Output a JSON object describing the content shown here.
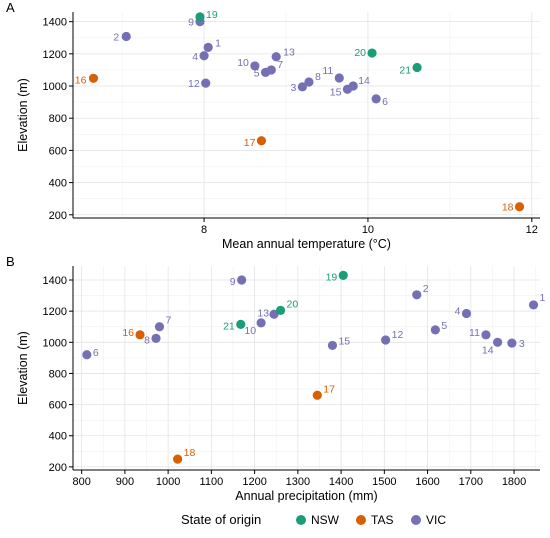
{
  "panels": [
    {
      "label": "A"
    },
    {
      "label": "B"
    }
  ],
  "legend": {
    "title": "State of origin",
    "entries": [
      {
        "name": "NSW",
        "color": "#1b9e77"
      },
      {
        "name": "TAS",
        "color": "#d95f02"
      },
      {
        "name": "VIC",
        "color": "#7570b3"
      }
    ]
  },
  "chart_data": [
    {
      "type": "scatter",
      "panel": "A",
      "xlabel": "Mean annual temperature (°C)",
      "ylabel": "Elevation (m)",
      "xlim": [
        6.4,
        12.1
      ],
      "ylim": [
        180,
        1460
      ],
      "xticks": [
        8,
        10,
        12
      ],
      "yticks": [
        200,
        400,
        600,
        800,
        1000,
        1200,
        1400
      ],
      "grid": true,
      "points": [
        {
          "id": "1",
          "state": "VIC",
          "x": 8.05,
          "y": 1240
        },
        {
          "id": "2",
          "state": "VIC",
          "x": 7.05,
          "y": 1308
        },
        {
          "id": "3",
          "state": "VIC",
          "x": 9.2,
          "y": 995
        },
        {
          "id": "4",
          "state": "VIC",
          "x": 8.0,
          "y": 1188
        },
        {
          "id": "5",
          "state": "VIC",
          "x": 8.75,
          "y": 1085
        },
        {
          "id": "6",
          "state": "VIC",
          "x": 10.1,
          "y": 920
        },
        {
          "id": "7",
          "state": "VIC",
          "x": 8.82,
          "y": 1100
        },
        {
          "id": "8",
          "state": "VIC",
          "x": 9.28,
          "y": 1025
        },
        {
          "id": "9",
          "state": "VIC",
          "x": 7.95,
          "y": 1400
        },
        {
          "id": "10",
          "state": "VIC",
          "x": 8.62,
          "y": 1125
        },
        {
          "id": "11",
          "state": "VIC",
          "x": 9.65,
          "y": 1050
        },
        {
          "id": "12",
          "state": "VIC",
          "x": 8.02,
          "y": 1018
        },
        {
          "id": "13",
          "state": "VIC",
          "x": 8.88,
          "y": 1182
        },
        {
          "id": "14",
          "state": "VIC",
          "x": 9.82,
          "y": 1000
        },
        {
          "id": "15",
          "state": "VIC",
          "x": 9.75,
          "y": 980
        },
        {
          "id": "16",
          "state": "TAS",
          "x": 6.65,
          "y": 1048
        },
        {
          "id": "17",
          "state": "TAS",
          "x": 8.7,
          "y": 660
        },
        {
          "id": "18",
          "state": "TAS",
          "x": 11.85,
          "y": 250
        },
        {
          "id": "19",
          "state": "NSW",
          "x": 7.95,
          "y": 1430
        },
        {
          "id": "20",
          "state": "NSW",
          "x": 10.05,
          "y": 1205
        },
        {
          "id": "21",
          "state": "NSW",
          "x": 10.6,
          "y": 1115
        }
      ]
    },
    {
      "type": "scatter",
      "panel": "B",
      "xlabel": "Annual precipitation (mm)",
      "ylabel": "Elevation (m)",
      "xlim": [
        780,
        1860
      ],
      "ylim": [
        180,
        1490
      ],
      "xticks": [
        800,
        900,
        1000,
        1100,
        1200,
        1300,
        1400,
        1500,
        1600,
        1700,
        1800
      ],
      "yticks": [
        200,
        400,
        600,
        800,
        1000,
        1200,
        1400
      ],
      "grid": true,
      "points": [
        {
          "id": "1",
          "state": "VIC",
          "x": 1845,
          "y": 1240
        },
        {
          "id": "2",
          "state": "VIC",
          "x": 1575,
          "y": 1305
        },
        {
          "id": "3",
          "state": "VIC",
          "x": 1795,
          "y": 995
        },
        {
          "id": "4",
          "state": "VIC",
          "x": 1690,
          "y": 1185
        },
        {
          "id": "5",
          "state": "VIC",
          "x": 1618,
          "y": 1080
        },
        {
          "id": "6",
          "state": "VIC",
          "x": 812,
          "y": 920
        },
        {
          "id": "7",
          "state": "VIC",
          "x": 980,
          "y": 1100
        },
        {
          "id": "8",
          "state": "VIC",
          "x": 972,
          "y": 1025
        },
        {
          "id": "9",
          "state": "VIC",
          "x": 1170,
          "y": 1400
        },
        {
          "id": "10",
          "state": "VIC",
          "x": 1215,
          "y": 1125
        },
        {
          "id": "11",
          "state": "VIC",
          "x": 1735,
          "y": 1048
        },
        {
          "id": "12",
          "state": "VIC",
          "x": 1503,
          "y": 1015
        },
        {
          "id": "13",
          "state": "VIC",
          "x": 1245,
          "y": 1180
        },
        {
          "id": "14",
          "state": "VIC",
          "x": 1762,
          "y": 1000
        },
        {
          "id": "15",
          "state": "VIC",
          "x": 1380,
          "y": 980
        },
        {
          "id": "16",
          "state": "TAS",
          "x": 935,
          "y": 1048
        },
        {
          "id": "17",
          "state": "TAS",
          "x": 1345,
          "y": 660
        },
        {
          "id": "18",
          "state": "TAS",
          "x": 1022,
          "y": 250
        },
        {
          "id": "19",
          "state": "NSW",
          "x": 1405,
          "y": 1430
        },
        {
          "id": "20",
          "state": "NSW",
          "x": 1260,
          "y": 1205
        },
        {
          "id": "21",
          "state": "NSW",
          "x": 1168,
          "y": 1115
        }
      ]
    }
  ]
}
